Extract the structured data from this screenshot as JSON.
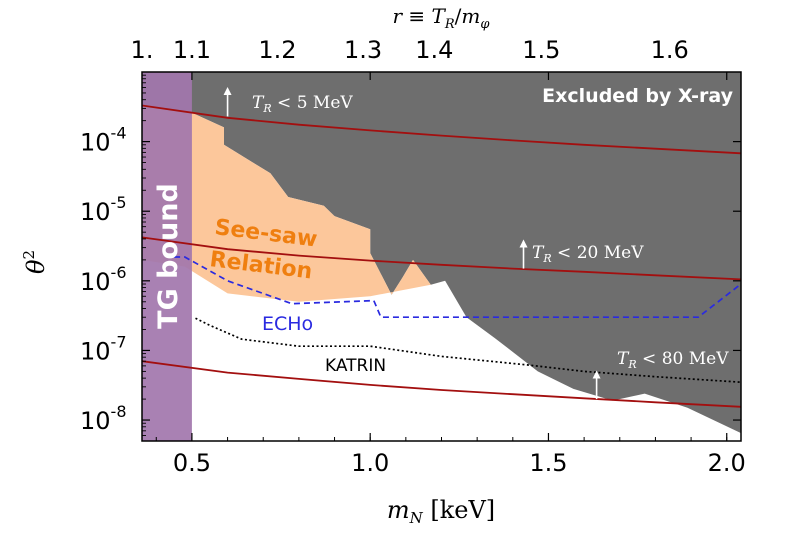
{
  "chart_data": {
    "type": "area",
    "x_axis": {
      "label": "m_N [keV]",
      "label_main": "m",
      "label_sub": "N",
      "label_unit": " [keV]",
      "range": [
        0.36,
        2.04
      ],
      "ticks": [
        0.5,
        1.0,
        1.5,
        2.0
      ],
      "tick_labels": [
        "0.5",
        "1.0",
        "1.5",
        "2.0"
      ]
    },
    "y_axis": {
      "label": "θ²",
      "label_main": "θ",
      "label_sup": "2",
      "scale": "log",
      "range": [
        5e-09,
        0.001
      ],
      "ticks": [
        1e-08,
        1e-07,
        1e-06,
        1e-05,
        0.0001
      ],
      "tick_labels": [
        "10",
        "10",
        "10",
        "10",
        "10"
      ],
      "tick_exponents": [
        "-8",
        "-7",
        "-6",
        "-5",
        "-4"
      ]
    },
    "top_axis": {
      "label": "r ≡ T_R/m_φ",
      "ticks_r": [
        "1.",
        "1.1",
        "1.2",
        "1.3",
        "1.4",
        "1.5",
        "1.6"
      ],
      "ticks_mN": [
        0.36,
        0.5,
        0.74,
        0.98,
        1.18,
        1.48,
        1.84
      ]
    },
    "regions": [
      {
        "name": "Excluded by X-ray",
        "color": "#6e6e6e",
        "boundary": [
          [
            0.36,
            0.001
          ],
          [
            0.36,
            0.00033
          ],
          [
            0.5,
            0.00026
          ],
          [
            0.59,
            0.00016
          ],
          [
            0.59,
            9e-05
          ],
          [
            0.72,
            3.5e-05
          ],
          [
            0.77,
            1.6e-05
          ],
          [
            0.87,
            1.2e-05
          ],
          [
            0.9,
            8.5e-06
          ],
          [
            1.0,
            5.5e-06
          ],
          [
            1.0,
            2.5e-06
          ],
          [
            1.06,
            6.3e-07
          ],
          [
            1.09,
            1.1e-06
          ],
          [
            1.12,
            2e-06
          ],
          [
            1.17,
            8.8e-07
          ],
          [
            1.21,
            1e-06
          ],
          [
            1.27,
            3e-07
          ],
          [
            1.35,
            1.5e-07
          ],
          [
            1.47,
            5e-08
          ],
          [
            1.57,
            2.8e-08
          ],
          [
            1.68,
            1.9e-08
          ],
          [
            1.77,
            2.4e-08
          ],
          [
            1.89,
            1.5e-08
          ],
          [
            2.04,
            6.5e-09
          ],
          [
            2.04,
            0.001
          ]
        ]
      },
      {
        "name": "See-saw Relation",
        "color": "#fcc79b",
        "boundary": [
          [
            0.36,
            0.00033
          ],
          [
            0.5,
            0.00026
          ],
          [
            0.59,
            0.00016
          ],
          [
            0.59,
            9e-05
          ],
          [
            0.72,
            3.5e-05
          ],
          [
            0.77,
            1.6e-05
          ],
          [
            0.87,
            1.2e-05
          ],
          [
            0.9,
            8.5e-06
          ],
          [
            1.0,
            5.5e-06
          ],
          [
            1.0,
            2.5e-06
          ],
          [
            1.06,
            6.3e-07
          ],
          [
            1.09,
            1.1e-06
          ],
          [
            1.12,
            2e-06
          ],
          [
            1.17,
            8.8e-07
          ],
          [
            1.0,
            6e-07
          ],
          [
            0.8,
            5e-07
          ],
          [
            0.6,
            6.6e-07
          ],
          [
            0.48,
            1.6e-06
          ],
          [
            0.36,
            2e-06
          ]
        ]
      },
      {
        "name": "TG bound",
        "color": "#a276ad",
        "x_max": 0.5
      }
    ],
    "series": [
      {
        "name": "ECHo",
        "style": "dashed",
        "color": "#2a2ae0",
        "x": [
          0.45,
          0.48,
          0.6,
          0.78,
          1.01,
          1.03,
          1.92,
          2.04
        ],
        "y": [
          2.2e-06,
          2.2e-06,
          1e-06,
          4.7e-07,
          5.2e-07,
          3e-07,
          3e-07,
          9e-07
        ]
      },
      {
        "name": "KATRIN",
        "style": "dotted",
        "color": "#000000",
        "x": [
          0.51,
          0.55,
          0.64,
          0.8,
          1.0,
          1.2,
          1.44,
          1.6,
          1.8,
          2.04
        ],
        "y": [
          2.9e-07,
          2.3e-07,
          1.45e-07,
          1.15e-07,
          1.15e-07,
          8.2e-08,
          6.2e-08,
          5e-08,
          4.2e-08,
          3.5e-08
        ]
      },
      {
        "name": "T_R < 5 MeV",
        "style": "solid",
        "color": "#a30f0f",
        "x": [
          0.36,
          0.6,
          0.8,
          1.0,
          1.2,
          1.4,
          1.6,
          1.8,
          2.04
        ],
        "y": [
          0.00033,
          0.00022,
          0.000175,
          0.000145,
          0.000122,
          0.000104,
          9e-05,
          7.9e-05,
          6.8e-05
        ]
      },
      {
        "name": "T_R < 20 MeV",
        "style": "solid",
        "color": "#a30f0f",
        "x": [
          0.36,
          0.6,
          0.8,
          1.0,
          1.2,
          1.4,
          1.6,
          1.8,
          2.04
        ],
        "y": [
          4.2e-06,
          2.85e-06,
          2.3e-06,
          1.95e-06,
          1.7e-06,
          1.5e-06,
          1.35e-06,
          1.2e-06,
          1.05e-06
        ]
      },
      {
        "name": "T_R < 80 MeV",
        "style": "solid",
        "color": "#a30f0f",
        "x": [
          0.36,
          0.6,
          0.8,
          1.0,
          1.2,
          1.4,
          1.6,
          1.8,
          2.04
        ],
        "y": [
          7e-08,
          4.8e-08,
          3.9e-08,
          3.2e-08,
          2.7e-08,
          2.35e-08,
          2.05e-08,
          1.8e-08,
          1.55e-08
        ]
      }
    ],
    "annotations": [
      {
        "text": "Excluded by X-ray",
        "color": "#ffffff"
      },
      {
        "text": "See-saw",
        "color": "#ef7f10"
      },
      {
        "text": "Relation",
        "color": "#ef7f10"
      },
      {
        "text": "TG bound",
        "color": "#ffffff"
      },
      {
        "text": "ECHo",
        "color": "#2a2ae0"
      },
      {
        "text": "KATRIN",
        "color": "#000000"
      },
      {
        "text": "T_R < 5 MeV",
        "main": "T",
        "sub": "R",
        "rest": " < 5 MeV",
        "color": "#ffffff",
        "arrow_x": 0.6,
        "arrow_y": [
          0.00023,
          0.00065
        ]
      },
      {
        "text": "T_R < 20 MeV",
        "main": "T",
        "sub": "R",
        "rest": " < 20 MeV",
        "color": "#ffffff",
        "arrow_x": 1.43,
        "arrow_y": [
          1.5e-06,
          4.2e-06
        ]
      },
      {
        "text": "T_R < 80 MeV",
        "main": "T",
        "sub": "R",
        "rest": " < 80 MeV",
        "color": "#ffffff",
        "arrow_x": 1.635,
        "arrow_y": [
          2e-08,
          5.5e-08
        ]
      }
    ]
  }
}
